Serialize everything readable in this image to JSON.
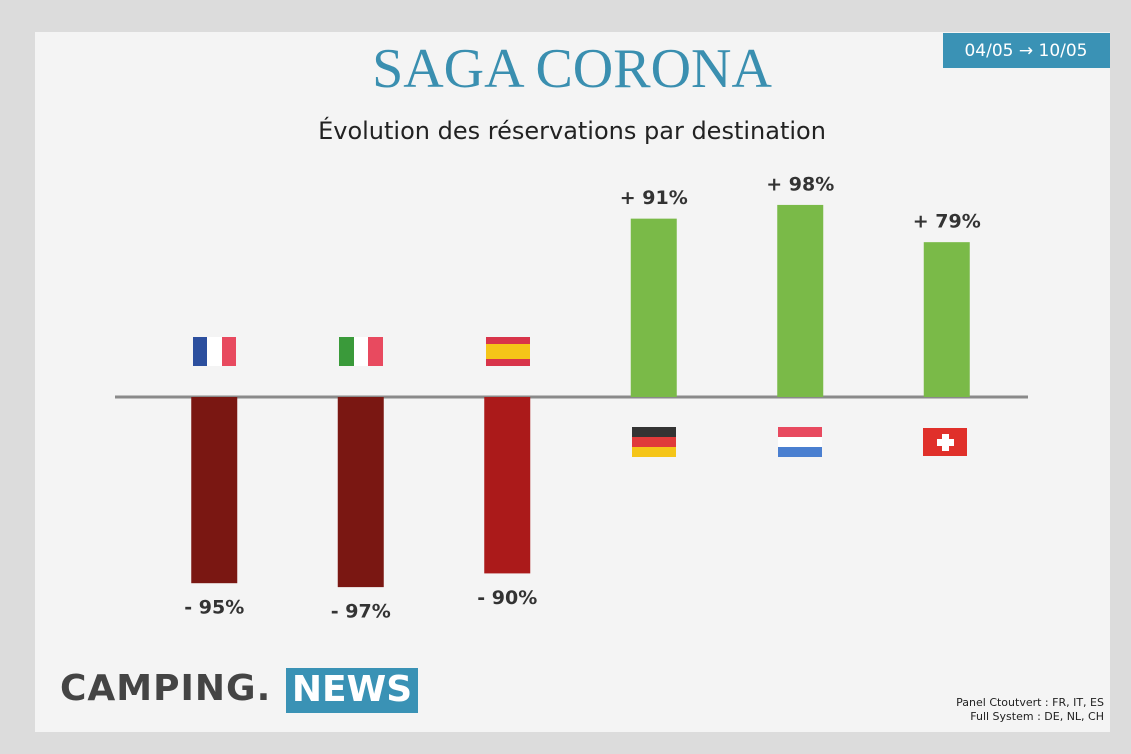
{
  "chart_data": {
    "type": "bar",
    "title": "SAGA CORONA",
    "subtitle": "Évolution des réservations par destination",
    "period": "04/05 → 10/05",
    "categories": [
      null,
      null,
      null,
      null,
      null,
      null
    ],
    "values": [
      -95,
      -97,
      -90,
      91,
      98,
      79
    ],
    "value_labels": [
      "- 95%",
      "- 97%",
      "- 90%",
      "+ 91%",
      "+ 98%",
      "+ 79%"
    ],
    "colors": [
      "#7a1712",
      "#7a1712",
      "#ab1a1a",
      "#7aba48",
      "#7aba48",
      "#7aba48"
    ],
    "logo": {
      "left": "CAMPING.",
      "right": "NEWS"
    },
    "notes": [
      "Panel Ctoutvert : FR, IT, ES",
      "Full System : DE, NL, CH"
    ]
  }
}
